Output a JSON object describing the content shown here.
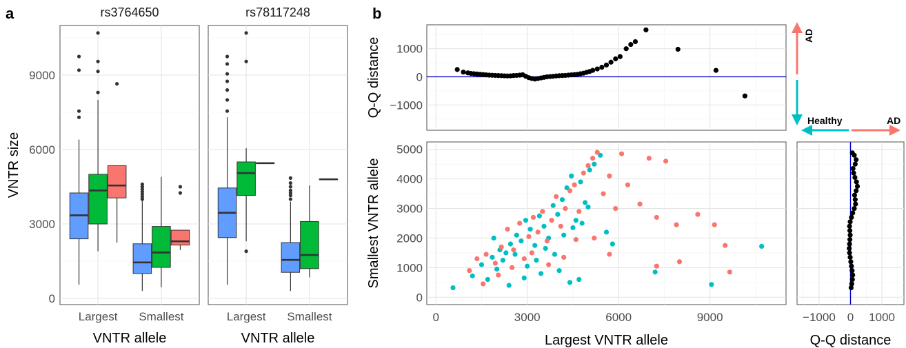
{
  "panel_labels": {
    "a": "a",
    "b": "b"
  },
  "colors": {
    "blue_box": "#619CFF",
    "green_box": "#00BA38",
    "red_box": "#F8766D",
    "healthy": "#00BFC4",
    "ad": "#F8766D",
    "zero_line": "#0000CD",
    "points": "#000000"
  },
  "legend": {
    "ad_vertical": "AD",
    "healthy": "Healthy",
    "ad_horizontal": "AD"
  },
  "chart_data": [
    {
      "type": "box",
      "panel": "a",
      "facets": [
        "rs3764650",
        "rs78117248"
      ],
      "categories": [
        "Largest",
        "Smallest"
      ],
      "xlabel": "VNTR allele",
      "ylabel": "VNTR size",
      "ylim": [
        -250,
        11000
      ],
      "yticks": [
        0,
        3000,
        6000,
        9000
      ],
      "grid": true,
      "boxes": [
        {
          "facet": "rs3764650",
          "category": "Largest",
          "group": "blue",
          "whisker_low": 550,
          "q1": 2400,
          "median": 3350,
          "q3": 4250,
          "whisker_high": 6400,
          "outliers": [
            7300,
            7550,
            9200,
            9750
          ]
        },
        {
          "facet": "rs3764650",
          "category": "Largest",
          "group": "green",
          "whisker_low": 1900,
          "q1": 3000,
          "median": 4350,
          "q3": 5000,
          "whisker_high": 8000,
          "outliers": [
            8300,
            9150,
            9550,
            10700
          ]
        },
        {
          "facet": "rs3764650",
          "category": "Largest",
          "group": "red",
          "whisker_low": 2250,
          "q1": 4050,
          "median": 4550,
          "q3": 5350,
          "whisker_high": 5350,
          "outliers": [
            8650
          ]
        },
        {
          "facet": "rs3764650",
          "category": "Smallest",
          "group": "blue",
          "whisker_low": 300,
          "q1": 1000,
          "median": 1450,
          "q3": 2200,
          "whisker_high": 3950,
          "outliers": [
            4000,
            4100,
            4200,
            4300,
            4400,
            4500,
            4600
          ]
        },
        {
          "facet": "rs3764650",
          "category": "Smallest",
          "group": "green",
          "whisker_low": 450,
          "q1": 1250,
          "median": 1850,
          "q3": 2900,
          "whisker_high": 4900,
          "outliers": []
        },
        {
          "facet": "rs3764650",
          "category": "Smallest",
          "group": "red",
          "whisker_low": 1950,
          "q1": 2150,
          "median": 2300,
          "q3": 2750,
          "whisker_high": 2750,
          "outliers": [
            4250,
            4500
          ]
        },
        {
          "facet": "rs78117248",
          "category": "Largest",
          "group": "blue",
          "whisker_low": 550,
          "q1": 2450,
          "median": 3450,
          "q3": 4450,
          "whisker_high": 7300,
          "outliers": [
            7550,
            8000,
            8400,
            8750,
            9050,
            9450,
            9750
          ]
        },
        {
          "facet": "rs78117248",
          "category": "Largest",
          "group": "green",
          "whisker_low": 2300,
          "q1": 4150,
          "median": 5050,
          "q3": 5500,
          "whisker_high": 6050,
          "outliers": [
            1900,
            9550,
            10700
          ]
        },
        {
          "facet": "rs78117248",
          "category": "Largest",
          "group": "red",
          "whisker_low": 5450,
          "q1": 5450,
          "median": 5450,
          "q3": 5450,
          "whisker_high": 5450,
          "outliers": []
        },
        {
          "facet": "rs78117248",
          "category": "Smallest",
          "group": "blue",
          "whisker_low": 300,
          "q1": 1050,
          "median": 1550,
          "q3": 2250,
          "whisker_high": 3900,
          "outliers": [
            4000,
            4150,
            4250,
            4350,
            4500,
            4650,
            4850
          ]
        },
        {
          "facet": "rs78117248",
          "category": "Smallest",
          "group": "green",
          "whisker_low": 850,
          "q1": 1200,
          "median": 1750,
          "q3": 3100,
          "whisker_high": 4550,
          "outliers": []
        },
        {
          "facet": "rs78117248",
          "category": "Smallest",
          "group": "red",
          "whisker_low": 4800,
          "q1": 4800,
          "median": 4800,
          "q3": 4800,
          "whisker_high": 4800,
          "outliers": []
        }
      ]
    },
    {
      "type": "scatter",
      "panel": "b-top",
      "ylabel": "Q-Q distance",
      "xlim": [
        -300,
        11500
      ],
      "ylim": [
        -1900,
        1850
      ],
      "yticks": [
        -1000,
        0,
        1000
      ],
      "reference_line": {
        "y": 0
      },
      "grid": true,
      "points": [
        [
          700,
          260
        ],
        [
          900,
          170
        ],
        [
          1050,
          140
        ],
        [
          1150,
          120
        ],
        [
          1250,
          110
        ],
        [
          1350,
          100
        ],
        [
          1450,
          90
        ],
        [
          1550,
          80
        ],
        [
          1650,
          70
        ],
        [
          1750,
          60
        ],
        [
          1850,
          55
        ],
        [
          1950,
          50
        ],
        [
          2050,
          45
        ],
        [
          2150,
          40
        ],
        [
          2250,
          35
        ],
        [
          2350,
          30
        ],
        [
          2450,
          35
        ],
        [
          2550,
          45
        ],
        [
          2650,
          50
        ],
        [
          2750,
          60
        ],
        [
          2850,
          75
        ],
        [
          2950,
          20
        ],
        [
          3050,
          -30
        ],
        [
          3150,
          -60
        ],
        [
          3250,
          -80
        ],
        [
          3350,
          -60
        ],
        [
          3450,
          -40
        ],
        [
          3550,
          -20
        ],
        [
          3650,
          0
        ],
        [
          3750,
          10
        ],
        [
          3850,
          20
        ],
        [
          3950,
          30
        ],
        [
          4050,
          40
        ],
        [
          4150,
          45
        ],
        [
          4250,
          50
        ],
        [
          4350,
          60
        ],
        [
          4450,
          70
        ],
        [
          4550,
          80
        ],
        [
          4650,
          90
        ],
        [
          4750,
          110
        ],
        [
          4850,
          130
        ],
        [
          4950,
          160
        ],
        [
          5050,
          190
        ],
        [
          5150,
          230
        ],
        [
          5300,
          280
        ],
        [
          5450,
          340
        ],
        [
          5600,
          420
        ],
        [
          5750,
          520
        ],
        [
          5900,
          640
        ],
        [
          6050,
          720
        ],
        [
          6250,
          1000
        ],
        [
          6400,
          1150
        ],
        [
          6550,
          1250
        ],
        [
          6900,
          1670
        ],
        [
          7950,
          980
        ],
        [
          9200,
          230
        ],
        [
          10150,
          -680
        ]
      ]
    },
    {
      "type": "scatter",
      "panel": "b-main",
      "xlabel": "Largest VNTR allele",
      "ylabel": "Smallest VNTR allele",
      "xlim": [
        -300,
        11500
      ],
      "ylim": [
        -250,
        5250
      ],
      "xticks": [
        0,
        3000,
        6000,
        9000
      ],
      "yticks": [
        0,
        1000,
        2000,
        3000,
        4000,
        5000
      ],
      "grid": true,
      "series": [
        {
          "name": "Healthy",
          "points": [
            [
              560,
              320
            ],
            [
              1200,
              720
            ],
            [
              1500,
              1100
            ],
            [
              1850,
              1350
            ],
            [
              2100,
              1600
            ],
            [
              2300,
              1500
            ],
            [
              2450,
              1800
            ],
            [
              2650,
              2100
            ],
            [
              2800,
              1900
            ],
            [
              2950,
              2600
            ],
            [
              3100,
              2300
            ],
            [
              3250,
              1750
            ],
            [
              3400,
              2750
            ],
            [
              3550,
              2400
            ],
            [
              3700,
              2000
            ],
            [
              3850,
              3100
            ],
            [
              4000,
              2800
            ],
            [
              4150,
              3300
            ],
            [
              4300,
              3700
            ],
            [
              4450,
              4100
            ],
            [
              4600,
              2600
            ],
            [
              4750,
              3900
            ],
            [
              4900,
              3200
            ],
            [
              5050,
              4300
            ],
            [
              5200,
              4500
            ],
            [
              5400,
              4800
            ],
            [
              5600,
              2200
            ],
            [
              5800,
              1800
            ],
            [
              7200,
              850
            ],
            [
              9050,
              430
            ],
            [
              10700,
              1720
            ],
            [
              1700,
              600
            ],
            [
              2000,
              950
            ],
            [
              2200,
              1250
            ],
            [
              2600,
              1450
            ],
            [
              3000,
              1050
            ],
            [
              3300,
              1250
            ],
            [
              3600,
              1650
            ],
            [
              3900,
              1450
            ],
            [
              4200,
              2100
            ],
            [
              4500,
              2350
            ],
            [
              4800,
              2500
            ],
            [
              5000,
              3050
            ],
            [
              2400,
              400
            ],
            [
              2900,
              650
            ],
            [
              3450,
              800
            ],
            [
              4050,
              900
            ],
            [
              4400,
              500
            ],
            [
              4700,
              600
            ],
            [
              1900,
              2000
            ]
          ]
        },
        {
          "name": "AD",
          "points": [
            [
              1100,
              900
            ],
            [
              1350,
              1300
            ],
            [
              1650,
              1450
            ],
            [
              1950,
              1150
            ],
            [
              2150,
              1700
            ],
            [
              2350,
              2300
            ],
            [
              2550,
              1600
            ],
            [
              2750,
              2500
            ],
            [
              2900,
              1300
            ],
            [
              3050,
              2050
            ],
            [
              3200,
              2700
            ],
            [
              3350,
              2200
            ],
            [
              3500,
              2900
            ],
            [
              3650,
              1900
            ],
            [
              3800,
              2600
            ],
            [
              3950,
              3400
            ],
            [
              4100,
              2400
            ],
            [
              4250,
              3000
            ],
            [
              4400,
              3600
            ],
            [
              4550,
              3800
            ],
            [
              4700,
              2900
            ],
            [
              4850,
              4200
            ],
            [
              5000,
              4450
            ],
            [
              5150,
              4700
            ],
            [
              5300,
              4900
            ],
            [
              5500,
              3500
            ],
            [
              5700,
              4100
            ],
            [
              5900,
              3000
            ],
            [
              6100,
              4850
            ],
            [
              6300,
              3800
            ],
            [
              6700,
              3150
            ],
            [
              7000,
              4700
            ],
            [
              7250,
              2700
            ],
            [
              7250,
              1050
            ],
            [
              7550,
              4600
            ],
            [
              7900,
              2450
            ],
            [
              8000,
              1200
            ],
            [
              8600,
              2800
            ],
            [
              9150,
              2450
            ],
            [
              9500,
              1750
            ],
            [
              9650,
              850
            ],
            [
              1550,
              450
            ],
            [
              2050,
              750
            ],
            [
              2500,
              1000
            ],
            [
              3150,
              1500
            ],
            [
              3700,
              1100
            ],
            [
              4200,
              1350
            ],
            [
              4600,
              1950
            ],
            [
              5200,
              2000
            ],
            [
              5700,
              1450
            ]
          ]
        }
      ]
    },
    {
      "type": "scatter",
      "panel": "b-right",
      "xlabel": "Q-Q distance",
      "xlim": [
        -1700,
        1700
      ],
      "ylim": [
        -250,
        5250
      ],
      "xticks": [
        -1000,
        0,
        1000
      ],
      "reference_line": {
        "x": 0
      },
      "grid": true,
      "points": [
        [
          20,
          320
        ],
        [
          40,
          450
        ],
        [
          60,
          600
        ],
        [
          70,
          750
        ],
        [
          50,
          900
        ],
        [
          30,
          1050
        ],
        [
          10,
          1200
        ],
        [
          -10,
          1350
        ],
        [
          -30,
          1500
        ],
        [
          -40,
          1650
        ],
        [
          -30,
          1800
        ],
        [
          -20,
          1950
        ],
        [
          -10,
          2100
        ],
        [
          -20,
          2250
        ],
        [
          -30,
          2400
        ],
        [
          -10,
          2550
        ],
        [
          30,
          2700
        ],
        [
          70,
          2850
        ],
        [
          120,
          3000
        ],
        [
          160,
          3150
        ],
        [
          150,
          3300
        ],
        [
          130,
          3450
        ],
        [
          180,
          3600
        ],
        [
          220,
          3750
        ],
        [
          190,
          3900
        ],
        [
          140,
          4050
        ],
        [
          100,
          4200
        ],
        [
          80,
          4350
        ],
        [
          150,
          4500
        ],
        [
          180,
          4650
        ],
        [
          120,
          4800
        ],
        [
          60,
          4880
        ]
      ]
    }
  ]
}
